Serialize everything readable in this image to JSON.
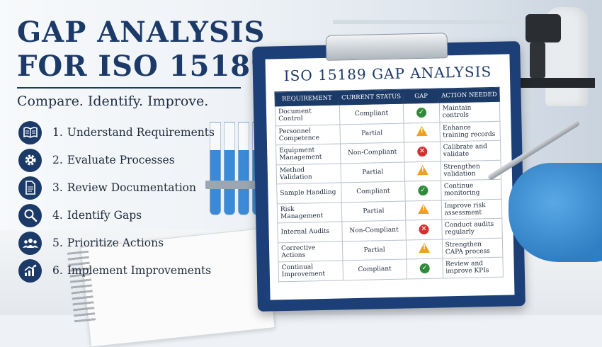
{
  "title": {
    "line1": "GAP ANALYSIS",
    "line2": "FOR ISO 15189"
  },
  "tagline": "Compare. Identify. Improve.",
  "steps": [
    {
      "num": "1.",
      "label": "Understand Requirements",
      "icon": "book-icon"
    },
    {
      "num": "2.",
      "label": "Evaluate Processes",
      "icon": "gear-icon"
    },
    {
      "num": "3.",
      "label": "Review Documentation",
      "icon": "document-icon"
    },
    {
      "num": "4.",
      "label": "Identify Gaps",
      "icon": "magnifier-icon"
    },
    {
      "num": "5.",
      "label": "Prioritize Actions",
      "icon": "people-icon"
    },
    {
      "num": "6.",
      "label": "Implement Improvements",
      "icon": "growth-chart-icon"
    }
  ],
  "clipboard": {
    "title": "ISO 15189 GAP ANALYSIS",
    "headers": [
      "REQUIREMENT",
      "CURRENT STATUS",
      "GAP",
      "ACTION NEEDED"
    ],
    "rows": [
      {
        "requirement": "Document Control",
        "status": "Compliant",
        "status_type": "compliant",
        "action": "Maintain controls"
      },
      {
        "requirement": "Personnel Competence",
        "status": "Partial",
        "status_type": "partial",
        "action": "Enhance training records"
      },
      {
        "requirement": "Equipment Management",
        "status": "Non-Compliant",
        "status_type": "non",
        "action": "Calibrate and validate"
      },
      {
        "requirement": "Method Validation",
        "status": "Partial",
        "status_type": "partial",
        "action": "Strengthen validation"
      },
      {
        "requirement": "Sample Handling",
        "status": "Compliant",
        "status_type": "compliant",
        "action": "Continue monitoring"
      },
      {
        "requirement": "Risk Management",
        "status": "Partial",
        "status_type": "partial",
        "action": "Improve risk assessment"
      },
      {
        "requirement": "Internal Audits",
        "status": "Non-Compliant",
        "status_type": "non",
        "action": "Conduct audits regularly"
      },
      {
        "requirement": "Corrective Actions",
        "status": "Partial",
        "status_type": "partial",
        "action": "Strengthen CAPA process"
      },
      {
        "requirement": "Continual Improvement",
        "status": "Compliant",
        "status_type": "compliant",
        "action": "Review and improve KPIs"
      }
    ]
  },
  "colors": {
    "navy": "#1c3a68",
    "compliant": "#2e7d32",
    "partial": "#e08a1e",
    "non_compliant": "#c62828"
  }
}
